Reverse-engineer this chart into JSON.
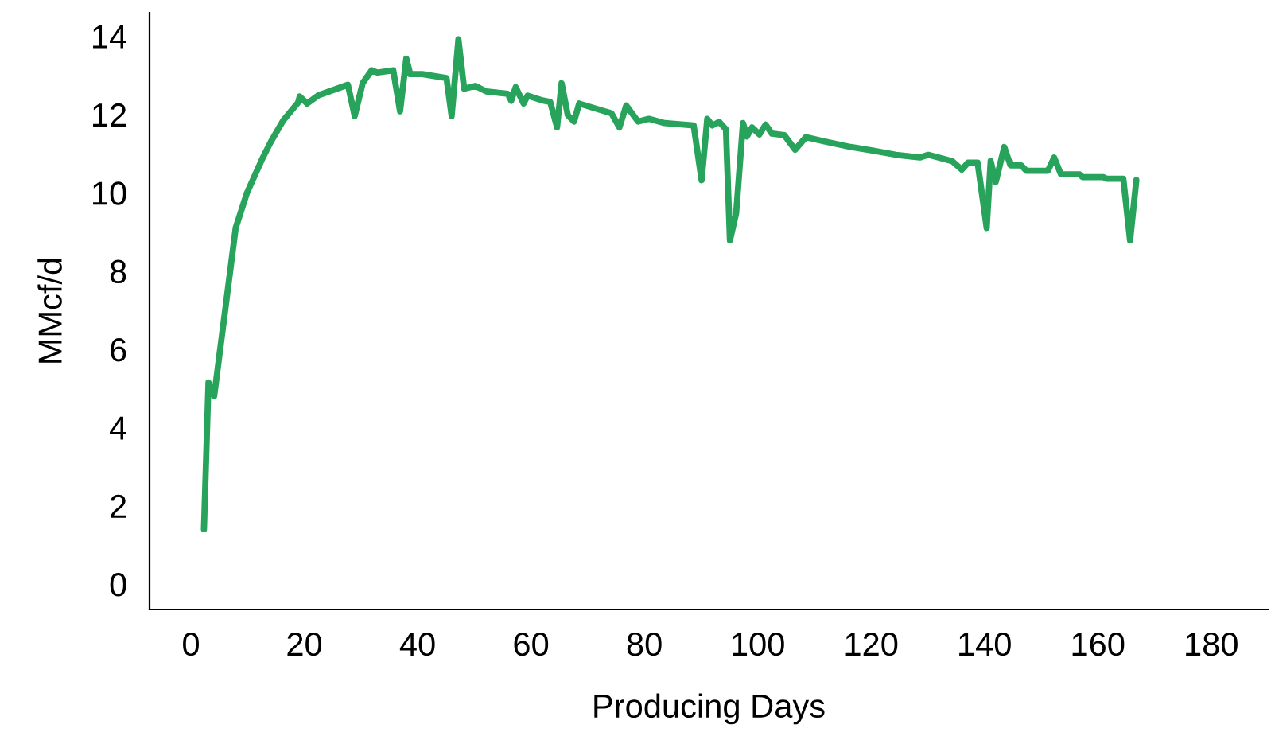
{
  "chart_data": {
    "type": "line",
    "xlabel": "Producing Days",
    "ylabel": "MMcf/d",
    "xlim": [
      -7.3,
      190
    ],
    "ylim": [
      -0.65,
      14.6
    ],
    "xticks": [
      0,
      20,
      40,
      60,
      80,
      100,
      120,
      140,
      160,
      180
    ],
    "yticks": [
      0,
      2,
      4,
      6,
      8,
      10,
      12,
      14
    ],
    "grid": false,
    "legend": false,
    "marker": "none",
    "line_style": "solid",
    "series": [
      {
        "color": "#27a35b",
        "x": [
          2.3,
          3.1,
          4.1,
          6.1,
          7.9,
          9.9,
          12.7,
          14.1,
          16.3,
          18.9,
          19.2,
          20.5,
          22.5,
          27.7,
          28.9,
          30.3,
          31.9,
          32.9,
          35.7,
          36.9,
          38,
          38.7,
          40.8,
          45.1,
          46,
          47.2,
          48.2,
          50.2,
          52.1,
          55.9,
          56.5,
          57.3,
          58.7,
          59.4,
          62,
          63.4,
          64.6,
          65.4,
          66.5,
          67.6,
          68.5,
          74.2,
          75.6,
          76.8,
          78.9,
          80.8,
          83.6,
          88.7,
          90.1,
          91.1,
          92,
          93.2,
          94.4,
          95.1,
          96.2,
          97.4,
          98.1,
          99,
          100.3,
          101.4,
          102.5,
          104.7,
          106.6,
          108.5,
          111.8,
          116.4,
          120.2,
          124.4,
          128.6,
          130.1,
          134.3,
          136,
          137.1,
          138.8,
          140.4,
          141.1,
          142,
          143.5,
          144.6,
          146.5,
          147.4,
          151.2,
          152.3,
          153.5,
          156.8,
          157.3,
          161,
          161.5,
          164.5,
          165.7,
          166.8
        ],
        "values": [
          1.4,
          5.15,
          4.8,
          7.06,
          9.1,
          10.0,
          10.9,
          11.3,
          11.85,
          12.3,
          12.46,
          12.28,
          12.49,
          12.76,
          11.96,
          12.8,
          13.13,
          13.07,
          13.13,
          12.08,
          13.43,
          13.03,
          13.03,
          12.93,
          11.96,
          13.92,
          12.66,
          12.73,
          12.59,
          12.53,
          12.35,
          12.7,
          12.28,
          12.48,
          12.36,
          12.32,
          11.67,
          12.8,
          11.98,
          11.82,
          12.28,
          12.03,
          11.67,
          12.23,
          11.82,
          11.89,
          11.78,
          11.72,
          10.32,
          11.89,
          11.72,
          11.81,
          11.62,
          8.78,
          9.48,
          11.78,
          11.44,
          11.67,
          11.49,
          11.74,
          11.51,
          11.47,
          11.1,
          11.42,
          11.31,
          11.17,
          11.08,
          10.97,
          10.9,
          10.97,
          10.81,
          10.59,
          10.77,
          10.77,
          9.1,
          10.81,
          10.27,
          11.17,
          10.7,
          10.7,
          10.56,
          10.56,
          10.9,
          10.47,
          10.47,
          10.4,
          10.4,
          10.36,
          10.36,
          8.78,
          10.32
        ]
      }
    ]
  }
}
